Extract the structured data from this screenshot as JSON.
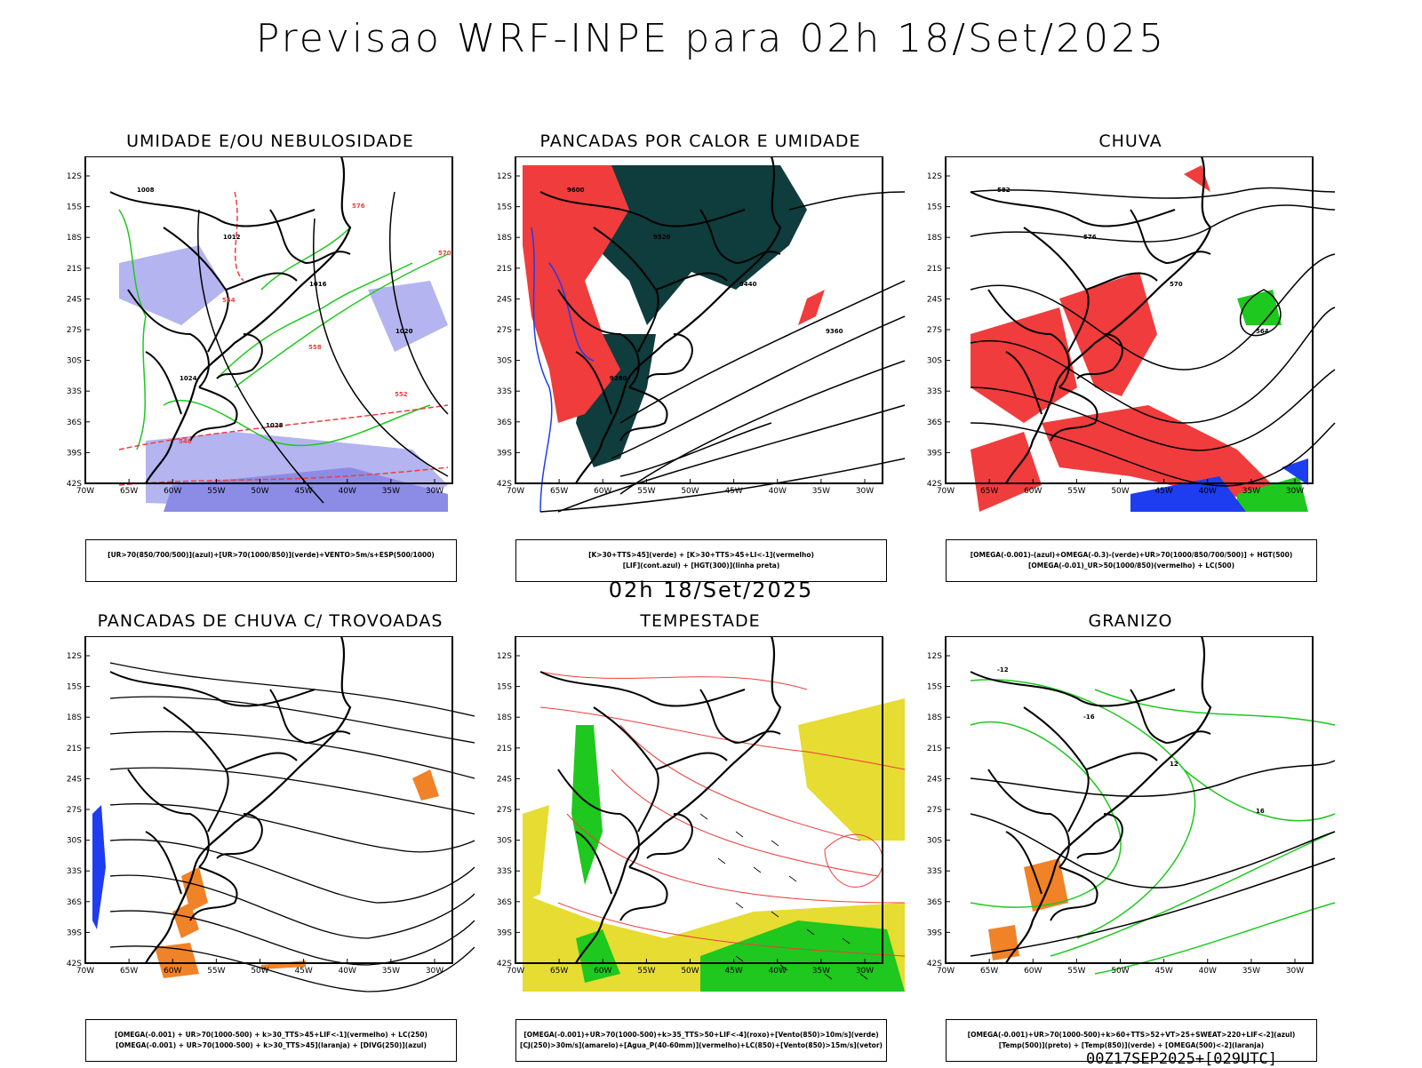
{
  "title": "Previsao WRF-INPE  para 02h 18/Set/2025",
  "mid_title": "02h 18/Set/2025",
  "footer": "00Z17SEP2025+[029UTC]",
  "lat_labels": [
    "12S",
    "15S",
    "18S",
    "21S",
    "24S",
    "27S",
    "30S",
    "33S",
    "36S",
    "39S",
    "42S"
  ],
  "lon_labels": [
    "70W",
    "65W",
    "60W",
    "55W",
    "50W",
    "45W",
    "40W",
    "35W",
    "30W"
  ],
  "panels": [
    {
      "title": "UMIDADE E/OU NEBULOSIDADE",
      "legend_lines": [
        "[UR>70(850/700/500)](azul)+[UR>70(1000/850)](verde)+VENTO>5m/s+ESP(500/1000)"
      ],
      "contour_labels": [
        "1008",
        "1012",
        "1016",
        "1020",
        "1024",
        "1028",
        "576",
        "570",
        "564",
        "558",
        "552",
        "546"
      ]
    },
    {
      "title": "PANCADAS POR CALOR E UMIDADE",
      "legend_lines": [
        "[K>30+TTS>45](verde) + [K>30+TTS>45+LI<-1](vermelho)",
        "[LIF](cont.azul) + [HGT(300)](linha preta)"
      ],
      "contour_labels": [
        "9600",
        "9520",
        "9440",
        "9360",
        "9280"
      ]
    },
    {
      "title": "CHUVA",
      "legend_lines": [
        "[OMEGA(-0.001)-(azul)+OMEGA(-0.3)-(verde)+UR>70(1000/850/700/500)] + HGT(500)",
        "[OMEGA(-0.01)_UR>50(1000/850)(vermelho) + LC(500)"
      ],
      "contour_labels": [
        "582",
        "576",
        "570",
        "564"
      ]
    },
    {
      "title": "PANCADAS DE CHUVA C/ TROVOADAS",
      "legend_lines": [
        "[OMEGA(-0.001) + UR>70(1000-500) + k>30_TTS>45+LIF<-1](vermelho) + LC(250)",
        "[OMEGA(-0.001) + UR>70(1000-500) + k>30_TTS>45](laranja) + [DIVG(250)](azul)"
      ],
      "contour_labels": []
    },
    {
      "title": "TEMPESTADE",
      "legend_lines": [
        "[OMEGA(-0.001)+UR>70(1000-500)+k>35_TTS>50+LIF<-4](roxo)+[Vento(850)>10m/s](verde)",
        "[CJ(250)>30m/s](amarelo)+[Agua_P(40-60mm)](vermelho)+LC(850)+[Vento(850)>15m/s](vetor)"
      ],
      "contour_labels": []
    },
    {
      "title": "GRANIZO",
      "legend_lines": [
        "[OMEGA(-0.001)+UR>70(1000-500)+k>60+TTS>52+VT>25+SWEAT>220+LIF<-2](azul)",
        "[Temp(500)](preto) + [Temp(850)](verde) + [OMEGA(500)<-2](laranja)"
      ],
      "contour_labels": [
        "-12",
        "-16",
        "12",
        "16"
      ]
    }
  ],
  "colors": {
    "red": "#f03c3c",
    "green": "#1ec81e",
    "blue": "#1e3cf0",
    "lavender": "#b4b4f0",
    "dark_teal": "#0f3c3c",
    "yellow": "#e6dc32",
    "orange": "#f08228",
    "black": "#000000"
  }
}
